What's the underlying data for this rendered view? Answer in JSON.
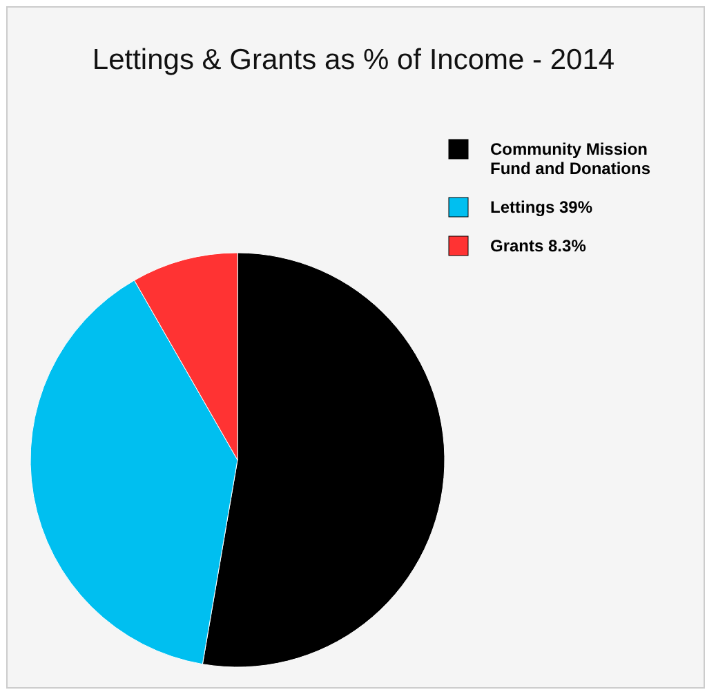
{
  "chart_data": {
    "type": "pie",
    "title": "Lettings & Grants as % of Income - 2014",
    "categories": [
      "Community Mission Fund and Donations",
      "Lettings 39%",
      "Grants 8.3%"
    ],
    "values": [
      52.7,
      39,
      8.3
    ],
    "colors": [
      "#000000",
      "#00bff0",
      "#ff3333"
    ],
    "legend": "top right"
  }
}
